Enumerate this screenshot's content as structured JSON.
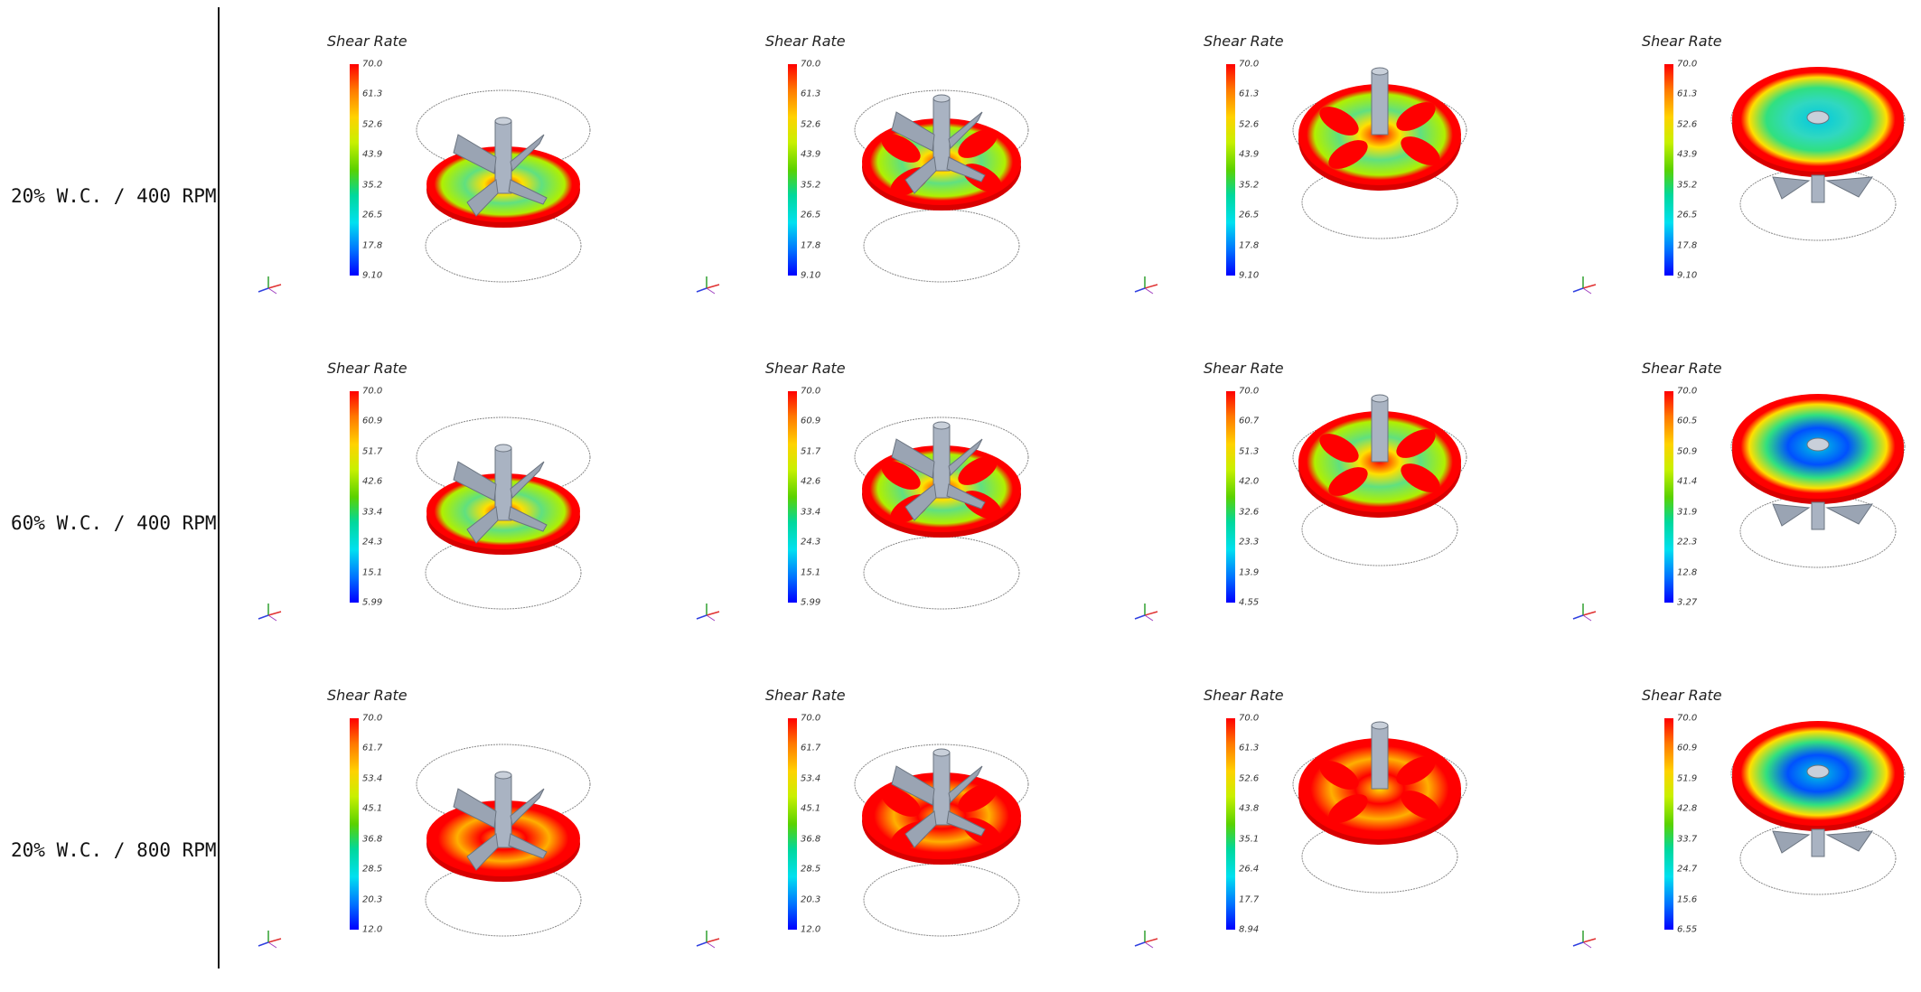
{
  "rows": [
    {
      "label": "20% W.C. / 400 RPM",
      "panels": [
        {
          "title": "Shear Rate",
          "ticks": [
            "70.0",
            "61.3",
            "52.6",
            "43.9",
            "35.2",
            "26.5",
            "17.8",
            "9.10"
          ]
        },
        {
          "title": "Shear Rate",
          "ticks": [
            "70.0",
            "61.3",
            "52.6",
            "43.9",
            "35.2",
            "26.5",
            "17.8",
            "9.10"
          ]
        },
        {
          "title": "Shear Rate",
          "ticks": [
            "70.0",
            "61.3",
            "52.6",
            "43.9",
            "35.2",
            "26.5",
            "17.8",
            "9.10"
          ]
        },
        {
          "title": "Shear Rate",
          "ticks": [
            "70.0",
            "61.3",
            "52.6",
            "43.9",
            "35.2",
            "26.5",
            "17.8",
            "9.10"
          ]
        }
      ]
    },
    {
      "label": "60% W.C. / 400 RPM",
      "panels": [
        {
          "title": "Shear Rate",
          "ticks": [
            "70.0",
            "60.9",
            "51.7",
            "42.6",
            "33.4",
            "24.3",
            "15.1",
            "5.99"
          ]
        },
        {
          "title": "Shear Rate",
          "ticks": [
            "70.0",
            "60.9",
            "51.7",
            "42.6",
            "33.4",
            "24.3",
            "15.1",
            "5.99"
          ]
        },
        {
          "title": "Shear Rate",
          "ticks": [
            "70.0",
            "60.7",
            "51.3",
            "42.0",
            "32.6",
            "23.3",
            "13.9",
            "4.55"
          ]
        },
        {
          "title": "Shear Rate",
          "ticks": [
            "70.0",
            "60.5",
            "50.9",
            "41.4",
            "31.9",
            "22.3",
            "12.8",
            "3.27"
          ]
        }
      ]
    },
    {
      "label": "20% W.C. / 800 RPM",
      "panels": [
        {
          "title": "Shear Rate",
          "ticks": [
            "70.0",
            "61.7",
            "53.4",
            "45.1",
            "36.8",
            "28.5",
            "20.3",
            "12.0"
          ]
        },
        {
          "title": "Shear Rate",
          "ticks": [
            "70.0",
            "61.7",
            "53.4",
            "45.1",
            "36.8",
            "28.5",
            "20.3",
            "12.0"
          ]
        },
        {
          "title": "Shear Rate",
          "ticks": [
            "70.0",
            "61.3",
            "52.6",
            "43.8",
            "35.1",
            "26.4",
            "17.7",
            "8.94"
          ]
        },
        {
          "title": "Shear Rate",
          "ticks": [
            "70.0",
            "60.9",
            "51.9",
            "42.8",
            "33.7",
            "24.7",
            "15.6",
            "6.55"
          ]
        }
      ]
    }
  ],
  "colors": {
    "high": "#ff0000",
    "mid": "#5ad200",
    "low": "#0000ff",
    "shaft": "#a9b3c2",
    "outline": "#555555"
  }
}
